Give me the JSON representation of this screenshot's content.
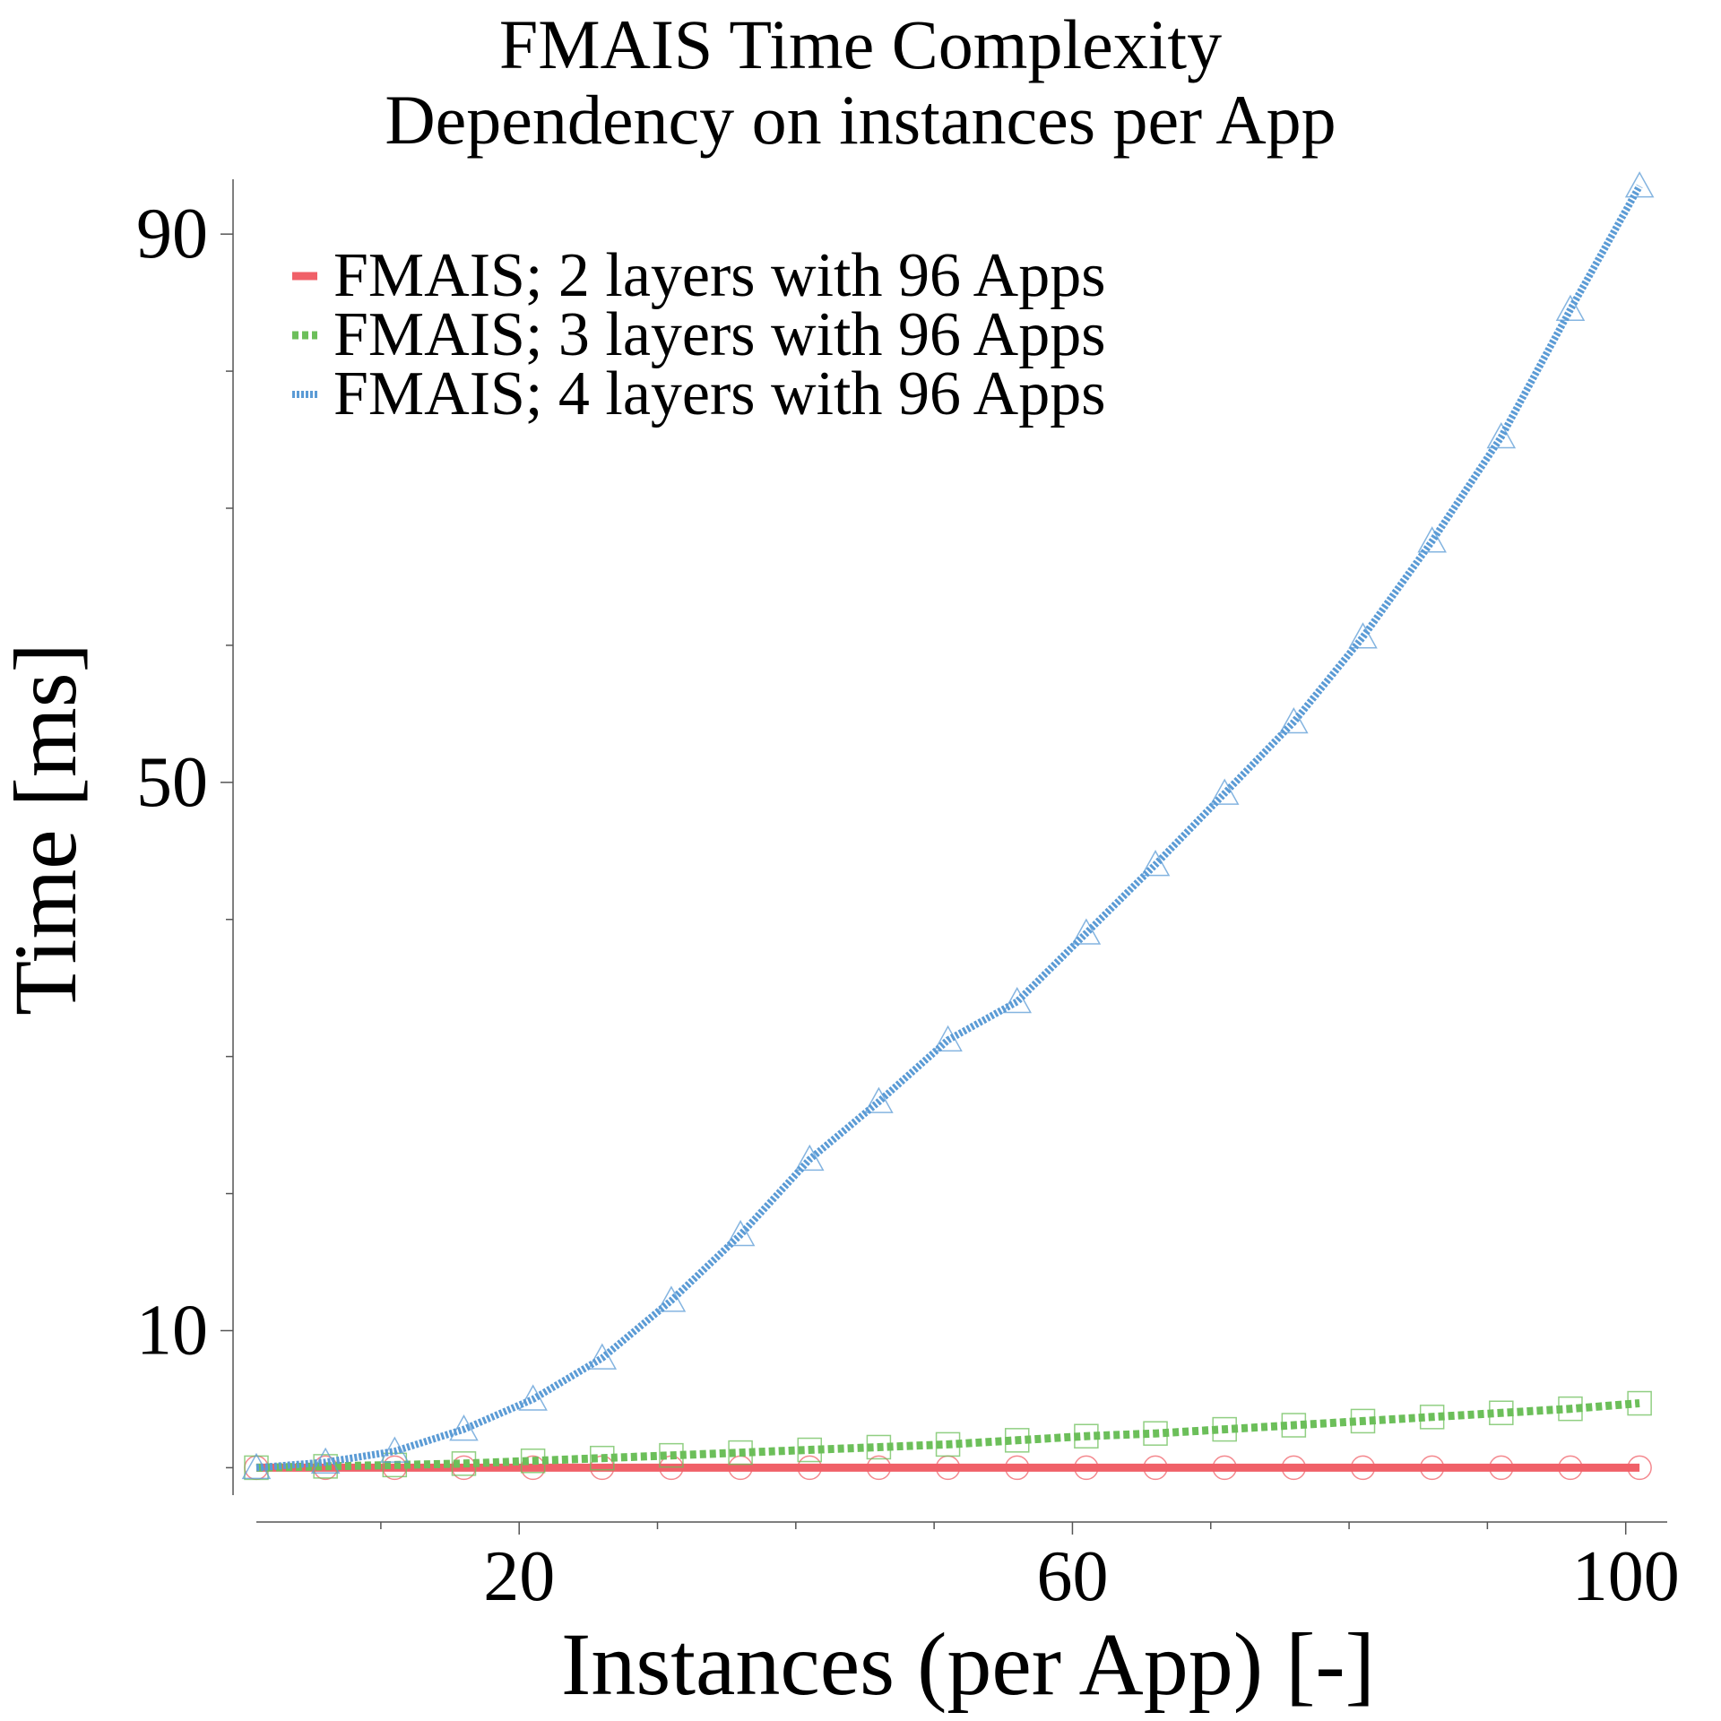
{
  "chart_data": {
    "type": "line",
    "title": "FMAIS Time Complexity",
    "subtitle": "Dependency on instances per App",
    "xlabel": "Instances (per App) [-]",
    "ylabel": "Time [ms]",
    "xlim": [
      1,
      103
    ],
    "ylim": [
      -2,
      94
    ],
    "xticks": [
      20,
      60,
      100
    ],
    "yticks": [
      10,
      50,
      90
    ],
    "x_minor_step": 10,
    "y_minor_step": 10,
    "grid": false,
    "legend_position": "top-left",
    "x": [
      1,
      6,
      11,
      16,
      21,
      26,
      31,
      36,
      41,
      46,
      51,
      56,
      61,
      66,
      71,
      76,
      81,
      86,
      91,
      96,
      101
    ],
    "series": [
      {
        "name": "FMAIS; 2 layers with 96 Apps",
        "color": "#f06068",
        "line_style": "solid",
        "marker": "circle",
        "values": [
          0.0,
          0.0,
          0.0,
          0.0,
          0.0,
          0.0,
          0.0,
          0.0,
          0.0,
          0.0,
          0.0,
          0.0,
          0.0,
          0.0,
          0.0,
          0.0,
          0.0,
          0.0,
          0.0,
          0.0,
          0.0
        ]
      },
      {
        "name": "FMAIS; 3 layers with 96 Apps",
        "color": "#6cbf5a",
        "line_style": "dotted",
        "marker": "square",
        "values": [
          0.0,
          0.1,
          0.2,
          0.3,
          0.5,
          0.7,
          0.9,
          1.1,
          1.3,
          1.5,
          1.7,
          2.0,
          2.3,
          2.5,
          2.8,
          3.1,
          3.4,
          3.7,
          4.0,
          4.3,
          4.7
        ]
      },
      {
        "name": "FMAIS; 4 layers with 96 Apps",
        "color": "#5b9bd5",
        "line_style": "dotted",
        "marker": "triangle",
        "values": [
          0.0,
          0.4,
          1.2,
          2.8,
          5.0,
          8.0,
          12.2,
          17.0,
          22.5,
          26.7,
          31.2,
          34.0,
          39.0,
          44.0,
          49.2,
          54.4,
          60.6,
          67.6,
          75.2,
          84.5,
          93.5
        ]
      }
    ]
  }
}
